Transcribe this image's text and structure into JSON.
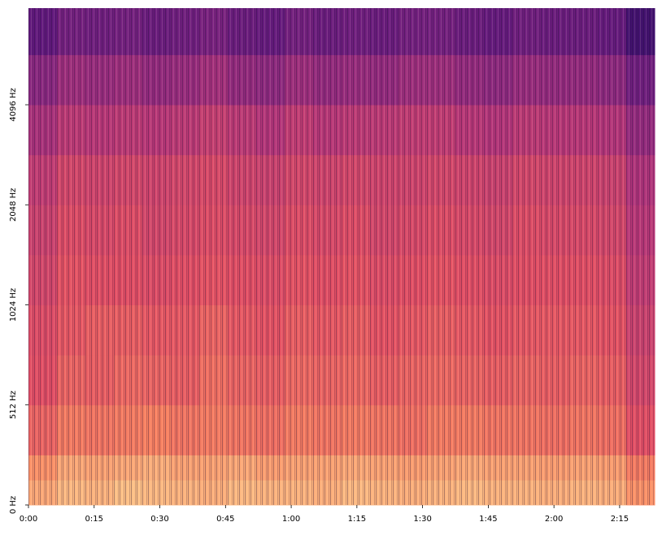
{
  "chart_data": {
    "type": "spectrogram",
    "colormap": "magma",
    "yscale": "symlog",
    "linthresh": 512,
    "xlim": [
      0,
      143
    ],
    "ylim": [
      0,
      8000
    ],
    "zlim": [
      -80,
      0
    ],
    "xticks": [
      {
        "value": 0,
        "label": "0:00"
      },
      {
        "value": 15,
        "label": "0:15"
      },
      {
        "value": 30,
        "label": "0:30"
      },
      {
        "value": 45,
        "label": "0:45"
      },
      {
        "value": 60,
        "label": "1:00"
      },
      {
        "value": 75,
        "label": "1:15"
      },
      {
        "value": 90,
        "label": "1:30"
      },
      {
        "value": 105,
        "label": "1:45"
      },
      {
        "value": 120,
        "label": "2:00"
      },
      {
        "value": 135,
        "label": "2:15"
      }
    ],
    "yticks": [
      {
        "value": 0,
        "label": "0 Hz"
      },
      {
        "value": 512,
        "label": "512 Hz"
      },
      {
        "value": 1024,
        "label": "1024 Hz"
      },
      {
        "value": 2048,
        "label": "2048 Hz"
      },
      {
        "value": 4096,
        "label": "4096 Hz"
      }
    ],
    "time_edges": [
      0,
      6.5,
      13,
      19.5,
      26,
      32.5,
      39,
      45.5,
      52,
      58.5,
      65,
      71.5,
      78,
      84.5,
      91,
      97.5,
      104,
      110.5,
      117,
      123.5,
      130,
      136.5,
      143
    ],
    "freq_edges": [
      0,
      128,
      256,
      512,
      724,
      1024,
      1448,
      2048,
      2896,
      4096,
      5793,
      8000
    ],
    "z": [
      [
        -14,
        -11,
        -12,
        -10,
        -11,
        -12,
        -13,
        -11,
        -12,
        -12,
        -13,
        -11,
        -12,
        -13,
        -12,
        -11,
        -12,
        -12,
        -13,
        -12,
        -13,
        -18
      ],
      [
        -18,
        -14,
        -15,
        -14,
        -13,
        -15,
        -15,
        -14,
        -16,
        -15,
        -15,
        -14,
        -15,
        -16,
        -15,
        -14,
        -15,
        -15,
        -16,
        -15,
        -16,
        -22
      ],
      [
        -26,
        -22,
        -23,
        -22,
        -21,
        -23,
        -22,
        -23,
        -24,
        -22,
        -23,
        -22,
        -23,
        -24,
        -22,
        -22,
        -23,
        -23,
        -24,
        -23,
        -24,
        -30
      ],
      [
        -30,
        -26,
        -27,
        -25,
        -26,
        -27,
        -24,
        -26,
        -27,
        -25,
        -26,
        -25,
        -27,
        -26,
        -25,
        -26,
        -27,
        -26,
        -27,
        -26,
        -27,
        -33
      ],
      [
        -31,
        -28,
        -27,
        -27,
        -28,
        -28,
        -26,
        -28,
        -29,
        -27,
        -28,
        -27,
        -29,
        -28,
        -27,
        -28,
        -29,
        -28,
        -28,
        -28,
        -29,
        -35
      ],
      [
        -33,
        -29,
        -30,
        -30,
        -31,
        -30,
        -29,
        -30,
        -31,
        -29,
        -30,
        -29,
        -31,
        -30,
        -29,
        -30,
        -31,
        -30,
        -30,
        -30,
        -31,
        -37
      ],
      [
        -35,
        -31,
        -32,
        -31,
        -33,
        -32,
        -31,
        -32,
        -33,
        -31,
        -32,
        -31,
        -33,
        -32,
        -31,
        -32,
        -33,
        -31,
        -32,
        -32,
        -33,
        -39
      ],
      [
        -37,
        -33,
        -34,
        -33,
        -34,
        -33,
        -32,
        -34,
        -35,
        -33,
        -34,
        -33,
        -34,
        -34,
        -33,
        -34,
        -35,
        -33,
        -34,
        -34,
        -35,
        -41
      ],
      [
        -42,
        -38,
        -39,
        -38,
        -39,
        -38,
        -36,
        -38,
        -40,
        -37,
        -39,
        -38,
        -38,
        -37,
        -37,
        -39,
        -40,
        -38,
        -39,
        -39,
        -40,
        -46
      ],
      [
        -48,
        -44,
        -45,
        -44,
        -46,
        -45,
        -43,
        -46,
        -47,
        -44,
        -46,
        -45,
        -46,
        -44,
        -44,
        -46,
        -47,
        -45,
        -46,
        -46,
        -47,
        -53
      ],
      [
        -56,
        -52,
        -53,
        -52,
        -54,
        -53,
        -51,
        -54,
        -55,
        -52,
        -54,
        -53,
        -54,
        -52,
        -52,
        -54,
        -55,
        -53,
        -54,
        -54,
        -55,
        -62
      ]
    ]
  }
}
